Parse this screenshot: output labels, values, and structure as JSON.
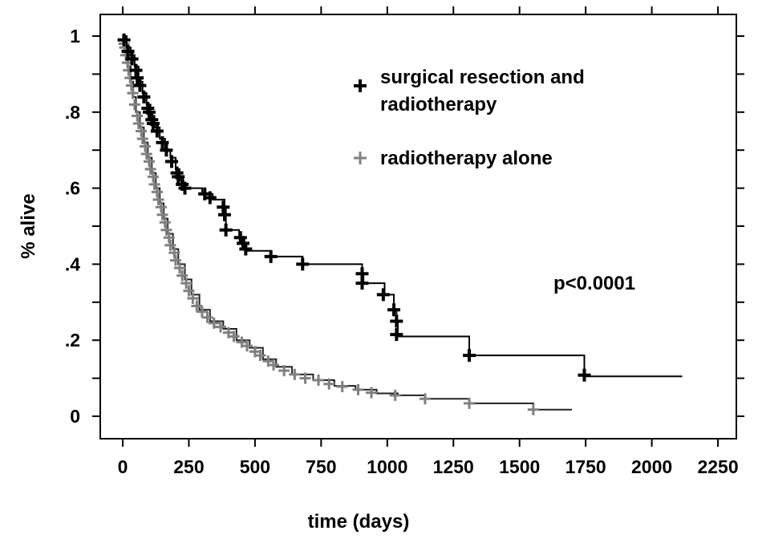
{
  "chart_data": {
    "type": "line",
    "subtype": "kaplan-meier",
    "xlabel": "time (days)",
    "ylabel": "% alive",
    "xlim": [
      0,
      2250
    ],
    "ylim": [
      0,
      1
    ],
    "xticks": [
      0,
      250,
      500,
      750,
      1000,
      1250,
      1500,
      1750,
      2000,
      2250
    ],
    "xtick_labels": [
      "0",
      "250",
      "500",
      "750",
      "1000",
      "1250",
      "1500",
      "1750",
      "2000",
      "2250"
    ],
    "yticks": [
      0,
      0.2,
      0.4,
      0.6,
      0.8,
      1
    ],
    "ytick_labels": [
      "0",
      ".2",
      ".4",
      ".6",
      ".8",
      "1"
    ],
    "grid": false,
    "legend_position": "top-right",
    "annotation": "p<0.0001",
    "series": [
      {
        "name": "surgical resection and radiotherapy",
        "color": "#000000",
        "steps": [
          [
            0,
            1
          ],
          [
            15,
            0.97
          ],
          [
            30,
            0.95
          ],
          [
            45,
            0.92
          ],
          [
            60,
            0.88
          ],
          [
            75,
            0.85
          ],
          [
            90,
            0.82
          ],
          [
            105,
            0.79
          ],
          [
            120,
            0.76
          ],
          [
            140,
            0.73
          ],
          [
            160,
            0.7
          ],
          [
            180,
            0.68
          ],
          [
            200,
            0.65
          ],
          [
            215,
            0.62
          ],
          [
            230,
            0.6
          ],
          [
            300,
            0.585
          ],
          [
            340,
            0.57
          ],
          [
            385,
            0.55
          ],
          [
            390,
            0.49
          ],
          [
            440,
            0.47
          ],
          [
            460,
            0.44
          ],
          [
            470,
            0.435
          ],
          [
            560,
            0.42
          ],
          [
            680,
            0.4
          ],
          [
            905,
            0.37
          ],
          [
            910,
            0.35
          ],
          [
            990,
            0.32
          ],
          [
            1025,
            0.28
          ],
          [
            1035,
            0.25
          ],
          [
            1040,
            0.21
          ],
          [
            1310,
            0.16
          ],
          [
            1745,
            0.105
          ]
        ],
        "end_time": 2115,
        "censored": [
          [
            5,
            0.99
          ],
          [
            20,
            0.96
          ],
          [
            35,
            0.94
          ],
          [
            50,
            0.91
          ],
          [
            55,
            0.89
          ],
          [
            65,
            0.87
          ],
          [
            80,
            0.84
          ],
          [
            95,
            0.81
          ],
          [
            100,
            0.8
          ],
          [
            110,
            0.78
          ],
          [
            115,
            0.77
          ],
          [
            130,
            0.75
          ],
          [
            150,
            0.72
          ],
          [
            165,
            0.7
          ],
          [
            185,
            0.67
          ],
          [
            205,
            0.64
          ],
          [
            210,
            0.63
          ],
          [
            225,
            0.61
          ],
          [
            235,
            0.6
          ],
          [
            310,
            0.585
          ],
          [
            330,
            0.575
          ],
          [
            380,
            0.55
          ],
          [
            385,
            0.53
          ],
          [
            390,
            0.49
          ],
          [
            445,
            0.47
          ],
          [
            455,
            0.455
          ],
          [
            465,
            0.44
          ],
          [
            560,
            0.42
          ],
          [
            680,
            0.4
          ],
          [
            905,
            0.375
          ],
          [
            905,
            0.35
          ],
          [
            985,
            0.32
          ],
          [
            1025,
            0.28
          ],
          [
            1035,
            0.25
          ],
          [
            1035,
            0.215
          ],
          [
            1310,
            0.16
          ],
          [
            1745,
            0.108
          ]
        ]
      },
      {
        "name": "radiotherapy alone",
        "color": "#808080",
        "steps": [
          [
            0,
            1
          ],
          [
            10,
            0.96
          ],
          [
            20,
            0.92
          ],
          [
            30,
            0.88
          ],
          [
            40,
            0.84
          ],
          [
            50,
            0.8
          ],
          [
            65,
            0.76
          ],
          [
            80,
            0.72
          ],
          [
            95,
            0.68
          ],
          [
            110,
            0.64
          ],
          [
            125,
            0.6
          ],
          [
            140,
            0.56
          ],
          [
            155,
            0.52
          ],
          [
            170,
            0.48
          ],
          [
            190,
            0.44
          ],
          [
            210,
            0.4
          ],
          [
            235,
            0.36
          ],
          [
            260,
            0.32
          ],
          [
            290,
            0.28
          ],
          [
            330,
            0.25
          ],
          [
            380,
            0.23
          ],
          [
            430,
            0.2
          ],
          [
            480,
            0.18
          ],
          [
            530,
            0.15
          ],
          [
            580,
            0.13
          ],
          [
            640,
            0.11
          ],
          [
            720,
            0.095
          ],
          [
            800,
            0.08
          ],
          [
            880,
            0.07
          ],
          [
            960,
            0.06
          ],
          [
            1040,
            0.055
          ],
          [
            1143,
            0.046
          ],
          [
            1310,
            0.034
          ],
          [
            1552,
            0.0175
          ]
        ],
        "end_time": 1698,
        "censored": [
          [
            2,
            0.99
          ],
          [
            5,
            0.98
          ],
          [
            8,
            0.97
          ],
          [
            12,
            0.95
          ],
          [
            18,
            0.93
          ],
          [
            22,
            0.91
          ],
          [
            28,
            0.89
          ],
          [
            33,
            0.87
          ],
          [
            38,
            0.85
          ],
          [
            45,
            0.82
          ],
          [
            55,
            0.79
          ],
          [
            60,
            0.77
          ],
          [
            70,
            0.75
          ],
          [
            75,
            0.73
          ],
          [
            85,
            0.71
          ],
          [
            90,
            0.69
          ],
          [
            100,
            0.67
          ],
          [
            105,
            0.65
          ],
          [
            115,
            0.63
          ],
          [
            120,
            0.61
          ],
          [
            130,
            0.59
          ],
          [
            135,
            0.57
          ],
          [
            145,
            0.55
          ],
          [
            150,
            0.53
          ],
          [
            160,
            0.51
          ],
          [
            165,
            0.49
          ],
          [
            175,
            0.47
          ],
          [
            180,
            0.45
          ],
          [
            195,
            0.43
          ],
          [
            200,
            0.41
          ],
          [
            215,
            0.39
          ],
          [
            225,
            0.37
          ],
          [
            240,
            0.35
          ],
          [
            250,
            0.33
          ],
          [
            265,
            0.31
          ],
          [
            280,
            0.29
          ],
          [
            300,
            0.275
          ],
          [
            320,
            0.26
          ],
          [
            345,
            0.245
          ],
          [
            370,
            0.235
          ],
          [
            400,
            0.22
          ],
          [
            420,
            0.21
          ],
          [
            450,
            0.195
          ],
          [
            470,
            0.185
          ],
          [
            500,
            0.17
          ],
          [
            520,
            0.16
          ],
          [
            550,
            0.145
          ],
          [
            570,
            0.135
          ],
          [
            610,
            0.12
          ],
          [
            650,
            0.11
          ],
          [
            690,
            0.1
          ],
          [
            740,
            0.095
          ],
          [
            780,
            0.085
          ],
          [
            830,
            0.078
          ],
          [
            890,
            0.07
          ],
          [
            940,
            0.062
          ],
          [
            1030,
            0.055
          ],
          [
            1143,
            0.046
          ],
          [
            1310,
            0.034
          ],
          [
            1552,
            0.0175
          ]
        ]
      }
    ]
  }
}
